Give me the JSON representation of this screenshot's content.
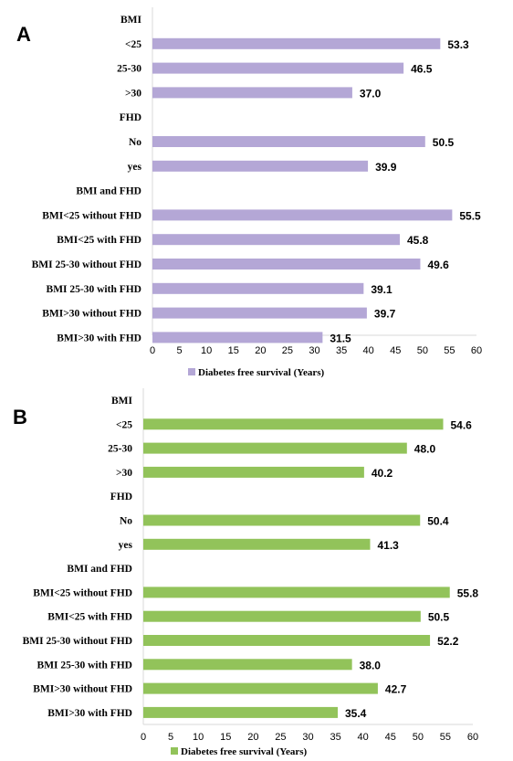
{
  "chart_data": [
    {
      "type": "bar",
      "orientation": "horizontal",
      "panel": "A",
      "categories": [
        "BMI",
        "<25",
        "25-30",
        ">30",
        "FHD",
        "No",
        "yes",
        "BMI and FHD",
        "BMI<25 without FHD",
        "BMI<25 with FHD",
        "BMI 25-30 without FHD",
        "BMI 25-30 with FHD",
        "BMI>30 without FHD",
        "BMI>30 with FHD"
      ],
      "values": [
        null,
        53.3,
        46.5,
        37.0,
        null,
        50.5,
        39.9,
        null,
        55.5,
        45.8,
        49.6,
        39.1,
        39.7,
        31.5
      ],
      "value_labels": [
        "",
        "53.3",
        "46.5",
        "37.0",
        "",
        "50.5",
        "39.9",
        "",
        "55.5",
        "45.8",
        "49.6",
        "39.1",
        "39.7",
        "31.5"
      ],
      "series_name": "Diabetes free survival (Years)",
      "color": "#b4a7d6",
      "xlim": [
        0,
        60
      ],
      "xticks": [
        "0",
        "5",
        "10",
        "15",
        "20",
        "25",
        "30",
        "35",
        "40",
        "45",
        "50",
        "55",
        "60"
      ],
      "grid": false,
      "legend": "bottom"
    },
    {
      "type": "bar",
      "orientation": "horizontal",
      "panel": "B",
      "categories": [
        "BMI",
        "<25",
        "25-30",
        ">30",
        "FHD",
        "No",
        "yes",
        "BMI and FHD",
        "BMI<25 without FHD",
        "BMI<25 with FHD",
        "BMI 25-30 without FHD",
        "BMI 25-30 with FHD",
        "BMI>30 without FHD",
        "BMI>30 with FHD"
      ],
      "values": [
        null,
        54.6,
        48.0,
        40.2,
        null,
        50.4,
        41.3,
        null,
        55.8,
        50.5,
        52.2,
        38.0,
        42.7,
        35.4
      ],
      "value_labels": [
        "",
        "54.6",
        "48.0",
        "40.2",
        "",
        "50.4",
        "41.3",
        "",
        "55.8",
        "50.5",
        "52.2",
        "38.0",
        "42.7",
        "35.4"
      ],
      "series_name": "Diabetes free survival (Years)",
      "color": "#92c35a",
      "xlim": [
        0,
        60
      ],
      "xticks": [
        "0",
        "5",
        "10",
        "15",
        "20",
        "25",
        "30",
        "35",
        "40",
        "45",
        "50",
        "55",
        "60"
      ],
      "grid": false,
      "legend": "bottom"
    }
  ]
}
